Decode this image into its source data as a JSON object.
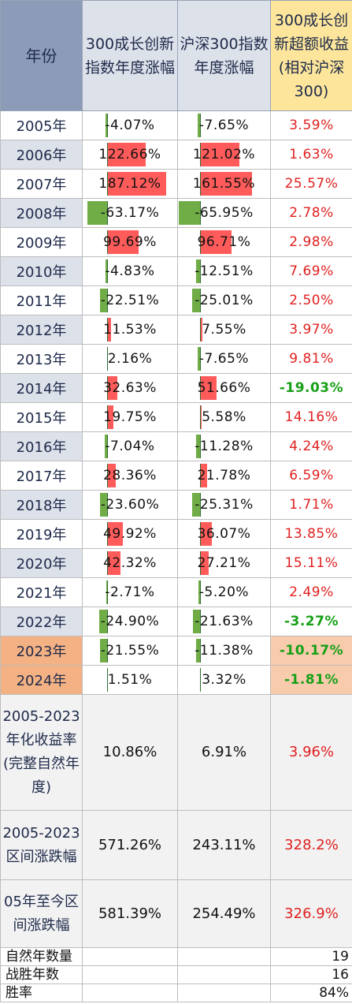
{
  "headers": {
    "year": "年份",
    "growth": "300成长创新指数年度涨幅",
    "hs300": "沪深300指数年度涨幅",
    "excess": "300成长创新超额收益(相对沪深300)"
  },
  "rows": [
    {
      "year": "2005年",
      "growth": "-4.07%",
      "growth_value": -4.07,
      "hs300": "-7.65%",
      "hs300_value": -7.65,
      "excess": "3.59%",
      "excess_value": 3.59
    },
    {
      "year": "2006年",
      "growth": "122.66%",
      "growth_value": 122.66,
      "hs300": "121.02%",
      "hs300_value": 121.02,
      "excess": "1.63%",
      "excess_value": 1.63
    },
    {
      "year": "2007年",
      "growth": "187.12%",
      "growth_value": 187.12,
      "hs300": "161.55%",
      "hs300_value": 161.55,
      "excess": "25.57%",
      "excess_value": 25.57
    },
    {
      "year": "2008年",
      "growth": "-63.17%",
      "growth_value": -63.17,
      "hs300": "-65.95%",
      "hs300_value": -65.95,
      "excess": "2.78%",
      "excess_value": 2.78
    },
    {
      "year": "2009年",
      "growth": "99.69%",
      "growth_value": 99.69,
      "hs300": "96.71%",
      "hs300_value": 96.71,
      "excess": "2.98%",
      "excess_value": 2.98
    },
    {
      "year": "2010年",
      "growth": "-4.83%",
      "growth_value": -4.83,
      "hs300": "-12.51%",
      "hs300_value": -12.51,
      "excess": "7.69%",
      "excess_value": 7.69
    },
    {
      "year": "2011年",
      "growth": "-22.51%",
      "growth_value": -22.51,
      "hs300": "-25.01%",
      "hs300_value": -25.01,
      "excess": "2.50%",
      "excess_value": 2.5
    },
    {
      "year": "2012年",
      "growth": "11.53%",
      "growth_value": 11.53,
      "hs300": "7.55%",
      "hs300_value": 7.55,
      "excess": "3.97%",
      "excess_value": 3.97
    },
    {
      "year": "2013年",
      "growth": "2.16%",
      "growth_value": 2.16,
      "hs300": "-7.65%",
      "hs300_value": -7.65,
      "excess": "9.81%",
      "excess_value": 9.81
    },
    {
      "year": "2014年",
      "growth": "32.63%",
      "growth_value": 32.63,
      "hs300": "51.66%",
      "hs300_value": 51.66,
      "excess": "-19.03%",
      "excess_value": -19.03
    },
    {
      "year": "2015年",
      "growth": "19.75%",
      "growth_value": 19.75,
      "hs300": "5.58%",
      "hs300_value": 5.58,
      "excess": "14.16%",
      "excess_value": 14.16
    },
    {
      "year": "2016年",
      "growth": "-7.04%",
      "growth_value": -7.04,
      "hs300": "-11.28%",
      "hs300_value": -11.28,
      "excess": "4.24%",
      "excess_value": 4.24
    },
    {
      "year": "2017年",
      "growth": "28.36%",
      "growth_value": 28.36,
      "hs300": "21.78%",
      "hs300_value": 21.78,
      "excess": "6.59%",
      "excess_value": 6.59
    },
    {
      "year": "2018年",
      "growth": "-23.60%",
      "growth_value": -23.6,
      "hs300": "-25.31%",
      "hs300_value": -25.31,
      "excess": "1.71%",
      "excess_value": 1.71
    },
    {
      "year": "2019年",
      "growth": "49.92%",
      "growth_value": 49.92,
      "hs300": "36.07%",
      "hs300_value": 36.07,
      "excess": "13.85%",
      "excess_value": 13.85
    },
    {
      "year": "2020年",
      "growth": "42.32%",
      "growth_value": 42.32,
      "hs300": "27.21%",
      "hs300_value": 27.21,
      "excess": "15.11%",
      "excess_value": 15.11
    },
    {
      "year": "2021年",
      "growth": "-2.71%",
      "growth_value": -2.71,
      "hs300": "-5.20%",
      "hs300_value": -5.2,
      "excess": "2.49%",
      "excess_value": 2.49
    },
    {
      "year": "2022年",
      "growth": "-24.90%",
      "growth_value": -24.9,
      "hs300": "-21.63%",
      "hs300_value": -21.63,
      "excess": "-3.27%",
      "excess_value": -3.27
    },
    {
      "year": "2023年",
      "growth": "-21.55%",
      "growth_value": -21.55,
      "hs300": "-11.38%",
      "hs300_value": -11.38,
      "excess": "-10.17%",
      "excess_value": -10.17
    },
    {
      "year": "2024年",
      "growth": "1.51%",
      "growth_value": 1.51,
      "hs300": "3.32%",
      "hs300_value": 3.32,
      "excess": "-1.81%",
      "excess_value": -1.81
    }
  ],
  "summary": [
    {
      "label": "2005-2023年化收益率(完整自然年度)",
      "growth": "10.86%",
      "hs300": "6.91%",
      "excess": "3.96%"
    },
    {
      "label": "2005-2023区间涨跌幅",
      "growth": "571.26%",
      "hs300": "243.11%",
      "excess": "328.2%"
    },
    {
      "label": "05年至今区间涨跌幅",
      "growth": "581.39%",
      "hs300": "254.49%",
      "excess": "326.9%"
    }
  ],
  "footer": [
    {
      "label": "自然年数量",
      "value": "19"
    },
    {
      "label": "战胜年数",
      "value": "16"
    },
    {
      "label": "胜率",
      "value": "84%"
    }
  ],
  "colors": {
    "positive_bar": "#ff5b5b",
    "negative_bar": "#70ad47",
    "positive_text": "#e02020",
    "negative_text": "#18a018",
    "header_year": "#8c9bb8",
    "header_excess": "#fde69b",
    "highlight_year": "#f4b183",
    "highlight_excess": "#f8cbad"
  }
}
